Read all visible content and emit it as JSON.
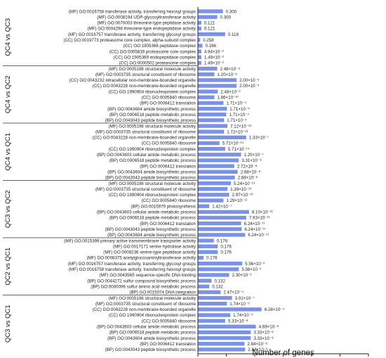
{
  "chart_data": {
    "type": "bar",
    "orientation": "horizontal",
    "xlabel": "Number of genes",
    "xlim": [
      0,
      300
    ],
    "xticks": [
      0,
      50,
      100,
      150,
      200,
      250,
      300
    ],
    "bar_color": "#7b93e6",
    "groups": [
      {
        "name": "QC4 vs QC3",
        "bars": [
          {
            "label": "(MF) GO:0016758 transferase activity, transferring hexosyl groups",
            "value": 44,
            "annotation": "0.300"
          },
          {
            "label": "(MF) GO:0008194 UDP-glycosyltransferase activity",
            "value": 34,
            "annotation": "0.300"
          },
          {
            "label": "(MF) GO:0070003 threonine-type peptidase activity",
            "value": 6,
            "annotation": "0.121"
          },
          {
            "label": "(MF) GO:0004298 threonine-type endopeptidase activity",
            "value": 6,
            "annotation": "0.121"
          },
          {
            "label": "(MF) GO:0016757 transferase activity, transferring glycosyl groups",
            "value": 48,
            "annotation": "0.118"
          },
          {
            "label": "(CC) GO:0019773 proteasome core complex, alpha-subunit complex",
            "value": 4,
            "annotation": "0.258"
          },
          {
            "label": "(CC) GO:1905368 peptidase complex",
            "value": 8,
            "annotation": "0.166"
          },
          {
            "label": "(CC) GO:0005839 proteasome core complex",
            "value": 6,
            "annotation": "4.94×10⁻²"
          },
          {
            "label": "(CC) GO:1905369 endopeptidase complex",
            "value": 6,
            "annotation": "1.49×10⁻²"
          },
          {
            "label": "(CC) GO:0000502 proteasome complex",
            "value": 6,
            "annotation": "1.49×10⁻²"
          }
        ]
      },
      {
        "name": "QC4 vs QC2",
        "bars": [
          {
            "label": "(MF) GO:0005198 structural molecule activity",
            "value": 34,
            "annotation": "2.48×10⁻⁸"
          },
          {
            "label": "(MF) GO:0003735 structural constituent of ribosome",
            "value": 29,
            "annotation": "1.20×10⁻⁸"
          },
          {
            "label": "(CC) GO:0043232 intracellular non-membrane-bounded organelle",
            "value": 68,
            "annotation": "2.00×10⁻⁵"
          },
          {
            "label": "(CC) GO:0043228 non-membrane-bounded organelle",
            "value": 68,
            "annotation": "2.00×10⁻⁵"
          },
          {
            "label": "(CC) GO:1990904 ribonucleoprotein complex",
            "value": 35,
            "annotation": "2.48×10⁻⁹"
          },
          {
            "label": "(CC) GO:0005840 ribosome",
            "value": 29,
            "annotation": "1.86×10⁻¹⁰"
          },
          {
            "label": "(BP) GO:0006412 translation",
            "value": 45,
            "annotation": "1.71×10⁻⁴"
          },
          {
            "label": "(BP) GO:0043604 amide biosynthetic process",
            "value": 51,
            "annotation": "1.71×10⁻⁴"
          },
          {
            "label": "(BP) GO:0006518 peptide metabolic process",
            "value": 50,
            "annotation": "1.71×10⁻⁴"
          },
          {
            "label": "(BP) GO:0043043 peptide biosynthetic process",
            "value": 46,
            "annotation": "1.71×10⁻⁴"
          }
        ]
      },
      {
        "name": "QC4 vs QC1",
        "bars": [
          {
            "label": "(MF) GO:0005198 structural molecule activity",
            "value": 52,
            "annotation": "7.12×10⁻¹³"
          },
          {
            "label": "(MF) GO:0003735 structural constituent of ribosome",
            "value": 46,
            "annotation": "1.72×10⁻¹³"
          },
          {
            "label": "(CC) GO:0043228 non-membrane-bounded organelle",
            "value": 85,
            "annotation": "1.33×10⁻⁷"
          },
          {
            "label": "(CC) GO:0005840 ribosome",
            "value": 38,
            "annotation": "5.71×10⁻¹⁴"
          },
          {
            "label": "(CC) GO:1990904 ribonucleoprotein complex",
            "value": 48,
            "annotation": "5.71×10⁻¹⁴"
          },
          {
            "label": "(BP) GO:0043603 cellular amide metabolic process",
            "value": 76,
            "annotation": "1.20×10⁻⁷"
          },
          {
            "label": "(BP) GO:0006518 peptide metabolic process",
            "value": 72,
            "annotation": "3.31×10⁻⁸"
          },
          {
            "label": "(BP) GO:0006412 translation",
            "value": 64,
            "annotation": "2.72×10⁻⁸"
          },
          {
            "label": "(BP) GO:0043604 amide biosynthetic process",
            "value": 70,
            "annotation": "2.68×10⁻⁸"
          },
          {
            "label": "(BP) GO:0043043 peptide biosynthetic process",
            "value": 65,
            "annotation": "2.68×10⁻⁸"
          }
        ]
      },
      {
        "name": "QC3 vs QC2",
        "bars": [
          {
            "label": "(MF) GO:0005198 structural molecule activity",
            "value": 58,
            "annotation": "5.24×10⁻¹³"
          },
          {
            "label": "(MF) GO:0003735 structural constituent of ribosome",
            "value": 52,
            "annotation": "1.39×10⁻¹³"
          },
          {
            "label": "(CC) GO:1990904 ribonucleoprotein complex",
            "value": 55,
            "annotation": "2.97×10⁻¹⁰"
          },
          {
            "label": "(CC) GO:0005840 ribosome",
            "value": 45,
            "annotation": "1.29×10⁻¹¹"
          },
          {
            "label": "(BP) GO:0015979 photosynthesis",
            "value": 20,
            "annotation": "1.42×10⁻⁷"
          },
          {
            "label": "(BP) GO:0043603 cellular amide metabolic process",
            "value": 90,
            "annotation": "8.10×10⁻¹¹"
          },
          {
            "label": "(BP) GO:0006518 peptide metabolic process",
            "value": 85,
            "annotation": "7.93×10⁻¹¹"
          },
          {
            "label": "(BP) GO:0006412 translation",
            "value": 76,
            "annotation": "6.24×10⁻¹¹"
          },
          {
            "label": "(BP) GO:0043043 peptide biosynthetic process",
            "value": 77,
            "annotation": "6.24×10⁻¹¹"
          },
          {
            "label": "(BP) GO:0043604 amide biosynthetic process",
            "value": 83,
            "annotation": "6.24×10⁻¹¹"
          }
        ]
      },
      {
        "name": "QC2 vs QC1",
        "bars": [
          {
            "label": "(MF) GO:0015399 primary active transmembrane transporter activity",
            "value": 28,
            "annotation": "0.176"
          },
          {
            "label": "(MF) GO:0017171 serine hydrolase activity",
            "value": 35,
            "annotation": "0.176"
          },
          {
            "label": "(MF) GO:0008236 serine-type peptidase activity",
            "value": 35,
            "annotation": "0.176"
          },
          {
            "label": "(MF) GO:0008375 acetylglucosaminyltransferase activity",
            "value": 10,
            "annotation": "0.176"
          },
          {
            "label": "(MF) GO:0016757 transferase activity, transferring glycosyl groups",
            "value": 78,
            "annotation": "5.56×10⁻²"
          },
          {
            "label": "(MF) GO:0016758 transferase activity, transferring hexosyl groups",
            "value": 72,
            "annotation": "5.56×10⁻²"
          },
          {
            "label": "(MF) GO:0043565 sequence-specific DNA binding",
            "value": 55,
            "annotation": "2.30×10⁻²"
          },
          {
            "label": "(BP) GO:0044272 sulfur compound biosynthetic process",
            "value": 24,
            "annotation": "0.132"
          },
          {
            "label": "(BP) GO:0000096 sulfur amino acid metabolic process",
            "value": 20,
            "annotation": "0.132"
          },
          {
            "label": "(BP) GO:0015074 DNA integration",
            "value": 40,
            "annotation": "2.47×10⁻⁴"
          }
        ]
      },
      {
        "name": "QC3 vs QC1",
        "bars": [
          {
            "label": "(MF) GO:0005198 structural molecule activity",
            "value": 60,
            "annotation": "3.01×10⁻⁷"
          },
          {
            "label": "(MF) GO:0003735 structural constituent of ribosome",
            "value": 51,
            "annotation": "1.74×10⁻⁹"
          },
          {
            "label": "(CC) GO:0043228 non-membrane-bounded organelle",
            "value": 112,
            "annotation": "6.28×10⁻⁴"
          },
          {
            "label": "(CC) GO:1990904 ribonucleoprotein complex",
            "value": 57,
            "annotation": "1.74×10⁻⁹"
          },
          {
            "label": "(CC) GO:0005840 ribosome",
            "value": 48,
            "annotation": "5.33×10⁻⁸"
          },
          {
            "label": "(BP) GO:0043603 cellular amide metabolic process",
            "value": 102,
            "annotation": "4.69×10⁻⁸"
          },
          {
            "label": "(BP) GO:0006518 peptide metabolic process",
            "value": 93,
            "annotation": "3.33×10⁻⁸"
          },
          {
            "label": "(BP) GO:0043604 amide biosynthetic process",
            "value": 93,
            "annotation": "3.33×10⁻⁸"
          },
          {
            "label": "(BP) GO:0006412 translation",
            "value": 82,
            "annotation": "2.84×10⁻⁸"
          },
          {
            "label": "(BP) GO:0043043 peptide biosynthetic process",
            "value": 83,
            "annotation": "2.84×10⁻⁹"
          }
        ]
      }
    ]
  }
}
